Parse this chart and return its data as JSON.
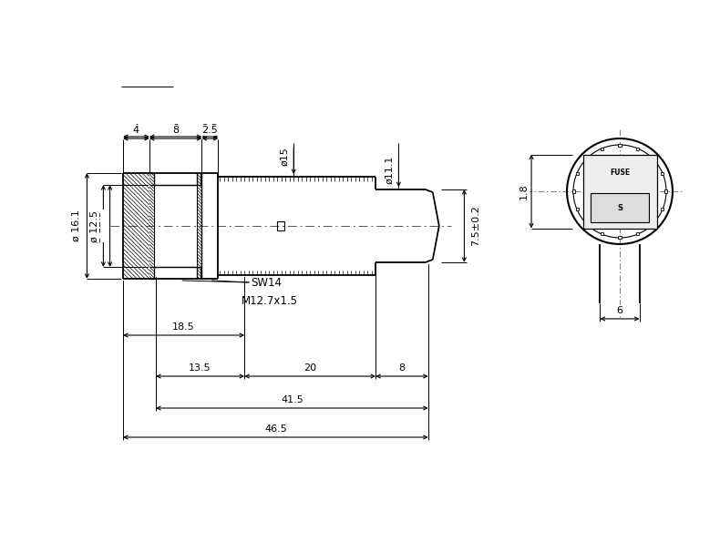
{
  "bg_color": "#ffffff",
  "line_color": "#000000",
  "figure_width": 7.9,
  "figure_height": 5.95,
  "dpi": 100,
  "annotations": {
    "dim_4": "4",
    "dim_8": "8",
    "dim_2_5": "2.5",
    "dim_15": "ø15",
    "dim_11_1": "ø11.1",
    "dim_7_5": "7.5±0.2",
    "dim_16_1": "ø 16.1",
    "dim_12_5": "ø 12.5",
    "dim_SW14": "SW14",
    "dim_M12": "M12.7x1.5",
    "dim_18_5": "18.5",
    "dim_13_5": "13.5",
    "dim_20": "20",
    "dim_8b": "8",
    "dim_41_5": "41.5",
    "dim_46_5": "46.5",
    "dim_1_8": "1.8",
    "dim_6": "6"
  }
}
